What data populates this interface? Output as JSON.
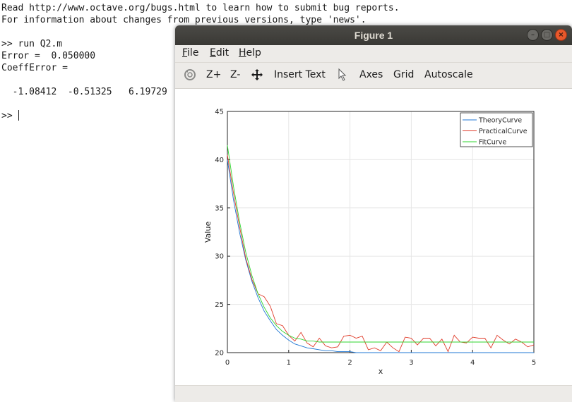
{
  "terminal": {
    "lines": [
      "Read http://www.octave.org/bugs.html to learn how to submit bug reports.",
      "For information about changes from previous versions, type 'news'.",
      "",
      ">> run Q2.m",
      "Error =  0.050000",
      "CoeffError =",
      "",
      "  -1.08412  -0.51325   6.19729",
      "",
      ">> "
    ]
  },
  "window": {
    "title": "Figure 1",
    "controls": {
      "minimize": "–",
      "maximize": "□",
      "close": "×"
    }
  },
  "menu": {
    "file": {
      "u": "F",
      "rest": "ile"
    },
    "edit": {
      "u": "E",
      "rest": "dit"
    },
    "help": {
      "u": "H",
      "rest": "elp"
    }
  },
  "toolbar": {
    "rotate_icon": "rotate-icon",
    "zoom_in": "Z+",
    "zoom_out": "Z-",
    "pan_icon": "pan-icon",
    "insert_text": "Insert Text",
    "select_icon": "pointer-icon",
    "axes": "Axes",
    "grid": "Grid",
    "autoscale": "Autoscale"
  },
  "colors": {
    "theory": "#1f77d4",
    "practical": "#e03c2a",
    "fit": "#2fd62f",
    "close_button": "#e9582b",
    "titlebar": "#3c3b37"
  },
  "chart_data": {
    "type": "line",
    "xlabel": "x",
    "ylabel": "Value",
    "xlim": [
      0,
      5
    ],
    "ylim": [
      20,
      45
    ],
    "xticks": [
      0,
      1,
      2,
      3,
      4,
      5
    ],
    "yticks": [
      20,
      25,
      30,
      35,
      40,
      45
    ],
    "grid": true,
    "legend_placement": "top-right",
    "x": [
      0,
      0.1,
      0.2,
      0.3,
      0.4,
      0.5,
      0.6,
      0.7,
      0.8,
      0.9,
      1.0,
      1.1,
      1.2,
      1.3,
      1.4,
      1.5,
      1.6,
      1.7,
      1.8,
      1.9,
      2.0,
      2.1,
      2.2,
      2.3,
      2.4,
      2.5,
      2.6,
      2.7,
      2.8,
      2.9,
      3.0,
      3.1,
      3.2,
      3.3,
      3.4,
      3.5,
      3.6,
      3.7,
      3.8,
      3.9,
      4.0,
      4.1,
      4.2,
      4.3,
      4.4,
      4.5,
      4.6,
      4.7,
      4.8,
      4.9,
      5.0
    ],
    "series": [
      {
        "name": "TheoryCurve",
        "values": [
          40.0,
          35.8,
          32.4,
          29.6,
          27.4,
          25.7,
          24.3,
          23.3,
          22.4,
          21.8,
          21.3,
          20.9,
          20.7,
          20.5,
          20.4,
          20.3,
          20.2,
          20.2,
          20.1,
          20.1,
          20.1,
          20.0,
          20.0,
          20.0,
          20.0,
          20.0,
          20.0,
          20.0,
          20.0,
          20.0,
          20.0,
          20.0,
          20.0,
          20.0,
          20.0,
          20.0,
          20.0,
          20.0,
          20.0,
          20.0,
          20.0,
          20.0,
          20.0,
          20.0,
          20.0,
          20.0,
          20.0,
          20.0,
          20.0,
          20.0,
          20.0
        ]
      },
      {
        "name": "PracticalCurve",
        "values": [
          40.5,
          36.5,
          33.0,
          29.8,
          27.6,
          26.1,
          25.8,
          24.8,
          23.0,
          22.8,
          21.8,
          21.2,
          22.1,
          21.0,
          20.6,
          21.5,
          20.7,
          20.5,
          20.6,
          21.7,
          21.8,
          21.5,
          21.7,
          20.3,
          20.5,
          20.2,
          21.1,
          20.5,
          20.1,
          21.6,
          21.5,
          20.8,
          21.5,
          21.5,
          20.7,
          21.4,
          20.1,
          21.8,
          21.1,
          21.0,
          21.6,
          21.5,
          21.5,
          20.5,
          21.8,
          21.3,
          20.9,
          21.4,
          21.1,
          20.6,
          20.8
        ]
      },
      {
        "name": "FitCurve",
        "values": [
          41.5,
          37.2,
          33.5,
          30.4,
          28.0,
          26.1,
          24.7,
          23.6,
          22.8,
          22.2,
          21.8,
          21.5,
          21.4,
          21.2,
          21.2,
          21.1,
          21.1,
          21.1,
          21.1,
          21.1,
          21.1,
          21.1,
          21.1,
          21.1,
          21.1,
          21.1,
          21.1,
          21.1,
          21.1,
          21.1,
          21.1,
          21.1,
          21.1,
          21.1,
          21.1,
          21.1,
          21.1,
          21.1,
          21.1,
          21.1,
          21.1,
          21.1,
          21.1,
          21.1,
          21.1,
          21.1,
          21.1,
          21.1,
          21.1,
          21.1,
          21.1
        ]
      }
    ]
  }
}
